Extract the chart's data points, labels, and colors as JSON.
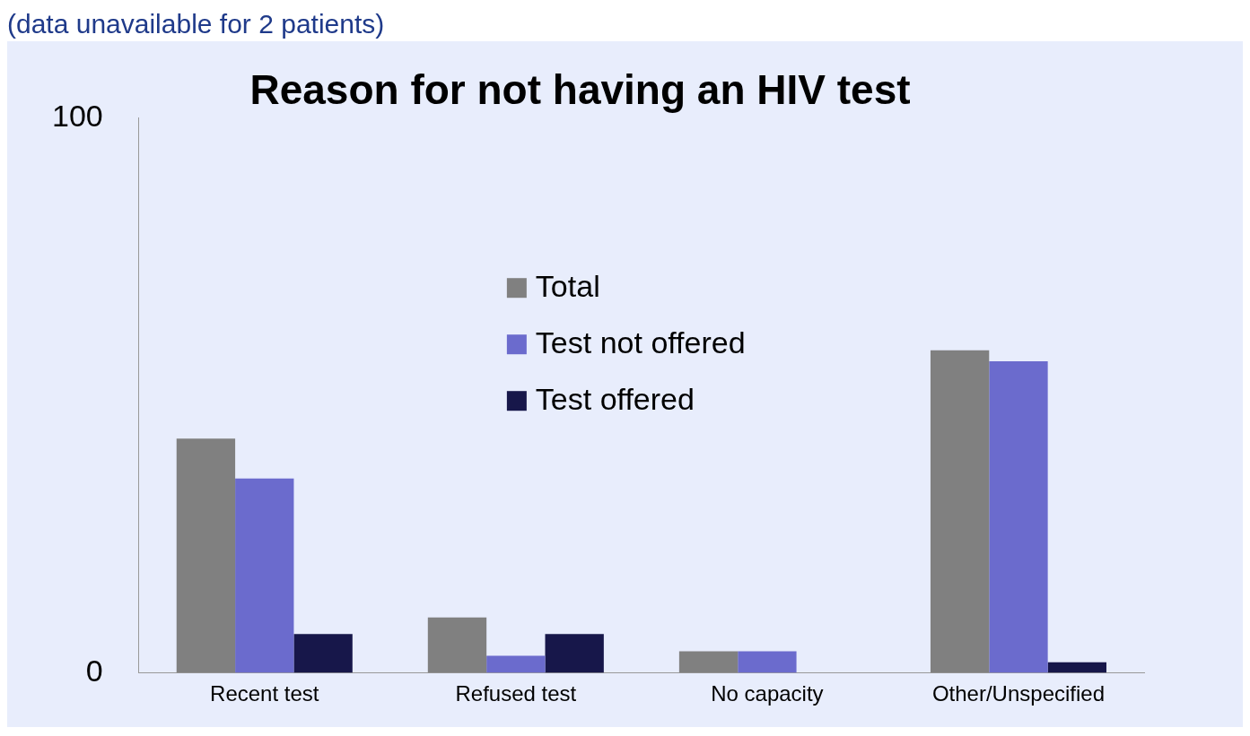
{
  "chart_data": {
    "type": "bar",
    "title": "Reason for not having an HIV test",
    "subtitle": "(data unavailable for 2 patients)",
    "categories": [
      "Recent test",
      "Refused test",
      "No capacity",
      "Other/Unspecified"
    ],
    "series": [
      {
        "name": "Total",
        "color": "#808080",
        "values": [
          42.2,
          10,
          3.9,
          58.1
        ]
      },
      {
        "name": "Test not offered",
        "color": "#6b6bcd",
        "values": [
          35,
          3.1,
          3.9,
          56.1
        ]
      },
      {
        "name": "Test offered",
        "color": "#17174a",
        "values": [
          7,
          7,
          null,
          1.9
        ]
      }
    ],
    "ylim": [
      0,
      100
    ],
    "yticks": [
      0,
      100
    ],
    "grid": false,
    "legend": "top"
  }
}
